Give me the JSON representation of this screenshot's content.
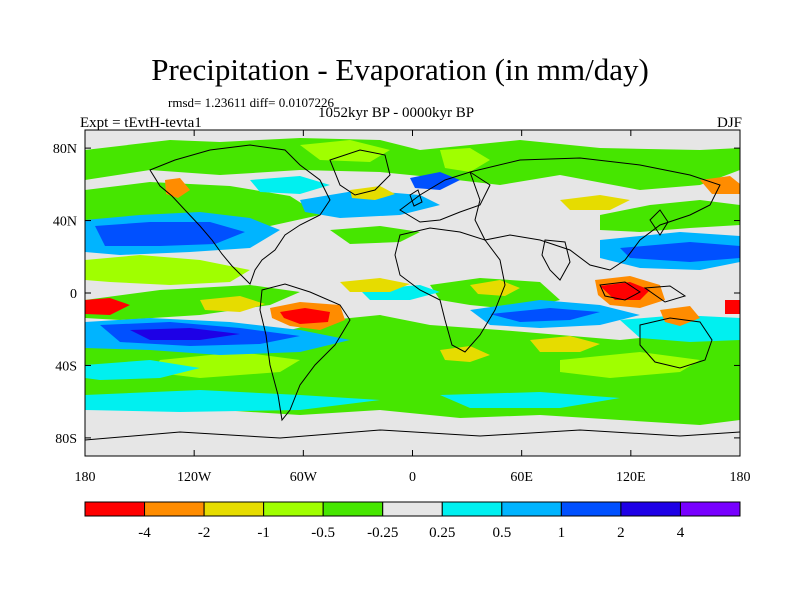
{
  "title": "Precipitation - Evaporation (in mm/day)",
  "stats": "rmsd= 1.23611 diff= 0.0107226",
  "period": "1052kyr BP - 0000kyr BP",
  "experiment": "Expt = tEvtH-tevta1",
  "season": "DJF",
  "map": {
    "projection": "cylindrical-equidistant",
    "land_color": "#e6e6e6",
    "longitude_labels": [
      {
        "lon": -180,
        "label": "180"
      },
      {
        "lon": -120,
        "label": "120W"
      },
      {
        "lon": -60,
        "label": "60W"
      },
      {
        "lon": 0,
        "label": "0"
      },
      {
        "lon": 60,
        "label": "60E"
      },
      {
        "lon": 120,
        "label": "120E"
      },
      {
        "lon": 180,
        "label": "180"
      }
    ],
    "latitude_labels": [
      {
        "lat": 80,
        "label": "80N"
      },
      {
        "lat": 40,
        "label": "40N"
      },
      {
        "lat": 0,
        "label": "0"
      },
      {
        "lat": -40,
        "label": "40S"
      },
      {
        "lat": -80,
        "label": "80S"
      }
    ]
  },
  "colorbar": {
    "colors": [
      "#ff0000",
      "#ff8c00",
      "#e6dc00",
      "#a0ff00",
      "#46e600",
      "#e6e6e6",
      "#00f0f0",
      "#00b4ff",
      "#0050ff",
      "#1e00e6",
      "#7800ff"
    ],
    "labels": [
      "-4",
      "-2",
      "-1",
      "-0.5",
      "-0.25",
      "0.25",
      "0.5",
      "1",
      "2",
      "4"
    ]
  }
}
